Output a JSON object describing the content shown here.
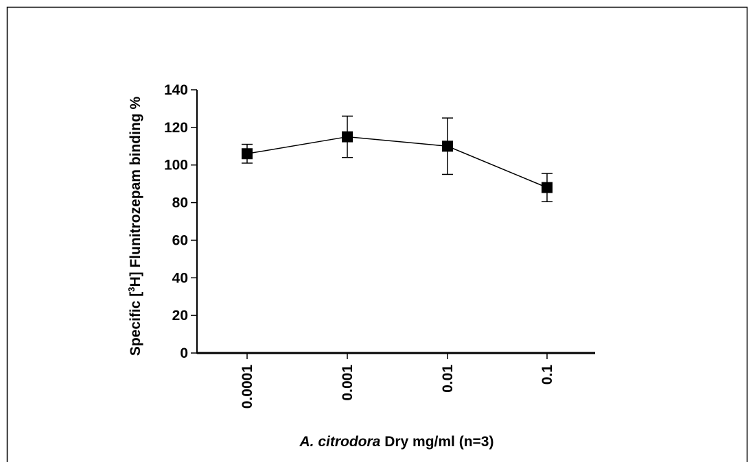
{
  "chart_data": {
    "type": "line",
    "title": "",
    "xlabel": {
      "italic_part": "A. citrodora",
      "rest": " Dry mg/ml (n=3)"
    },
    "ylabel": {
      "prefix": "Specific [",
      "superscript": "3",
      "suffix": "H] Flunitrozepam binding %"
    },
    "categories": [
      "0.0001",
      "0.001",
      "0.01",
      "0.1"
    ],
    "ylim": [
      0,
      140
    ],
    "yticks": [
      0,
      20,
      40,
      60,
      80,
      100,
      120,
      140
    ],
    "series": [
      {
        "values": [
          106,
          115,
          110,
          88
        ],
        "error": [
          5,
          11,
          15,
          7.5
        ],
        "marker": "square",
        "color": "#000000"
      }
    ],
    "grid": false,
    "legend": "none"
  }
}
